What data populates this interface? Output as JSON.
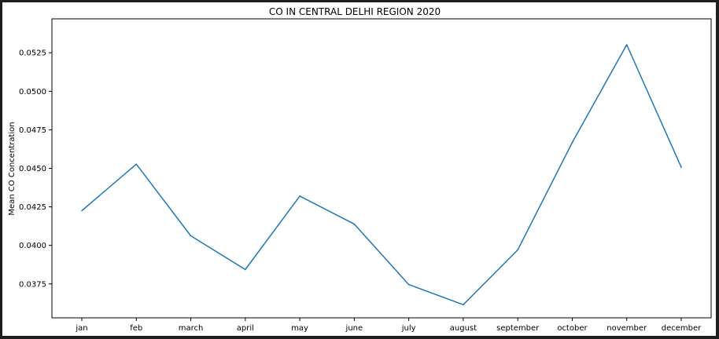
{
  "chart_data": {
    "type": "line",
    "title": "CO IN CENTRAL DELHI REGION 2020",
    "xlabel": "",
    "ylabel": "Mean CO Concentration",
    "categories": [
      "jan",
      "feb",
      "march",
      "april",
      "may",
      "june",
      "july",
      "august",
      "september",
      "october",
      "november",
      "december"
    ],
    "series": [
      {
        "values": [
          0.04225,
          0.04527,
          0.04062,
          0.03843,
          0.0432,
          0.04138,
          0.03746,
          0.03615,
          0.03971,
          0.04668,
          0.05302,
          0.04507
        ],
        "color": "#1f77b4"
      }
    ],
    "yticks": [
      "0.0375",
      "0.0400",
      "0.0425",
      "0.0450",
      "0.0475",
      "0.0500",
      "0.0525"
    ],
    "ylim": [
      0.0353,
      0.0547
    ],
    "grid": false,
    "legend": "none"
  }
}
